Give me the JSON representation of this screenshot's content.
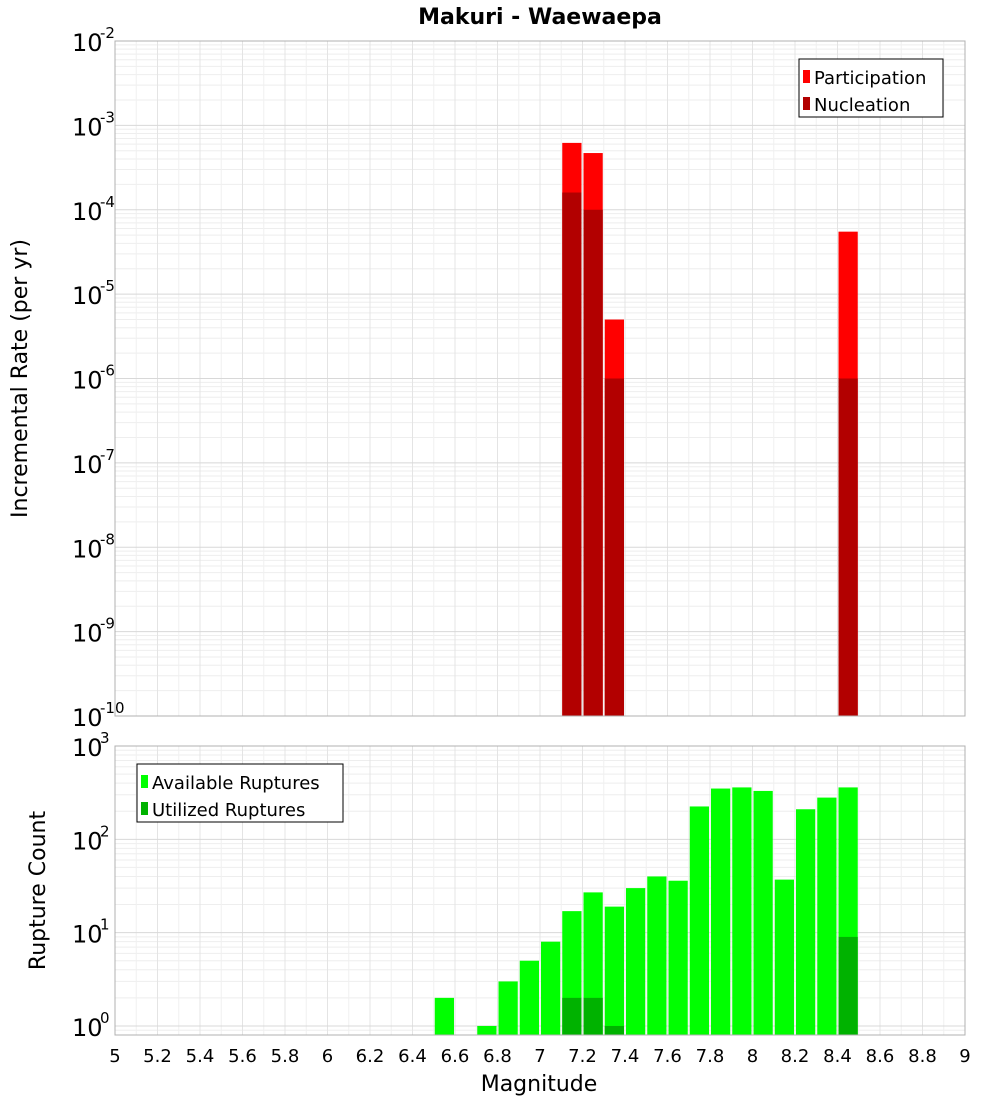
{
  "chart_data": [
    {
      "type": "bar",
      "title": "Makuri - Waewaepa",
      "ylabel": "Incremental Rate (per yr)",
      "xlabel": "",
      "yscale": "log",
      "ylim": [
        1e-10,
        0.01
      ],
      "xlim": [
        5,
        9
      ],
      "bar_width": 0.1,
      "y_ticks": [
        {
          "base": "10",
          "exp": "-10",
          "value": 1e-10
        },
        {
          "base": "10",
          "exp": "-9",
          "value": 1e-09
        },
        {
          "base": "10",
          "exp": "-8",
          "value": 1e-08
        },
        {
          "base": "10",
          "exp": "-7",
          "value": 1e-07
        },
        {
          "base": "10",
          "exp": "-6",
          "value": 1e-06
        },
        {
          "base": "10",
          "exp": "-5",
          "value": 1e-05
        },
        {
          "base": "10",
          "exp": "-4",
          "value": 0.0001
        },
        {
          "base": "10",
          "exp": "-3",
          "value": 0.001
        },
        {
          "base": "10",
          "exp": "-2",
          "value": 0.01
        }
      ],
      "legend": {
        "placement": "top-right"
      },
      "series": [
        {
          "name": "Participation",
          "color": "#ff0000",
          "points": [
            {
              "x": 7.15,
              "y": 0.00062
            },
            {
              "x": 7.25,
              "y": 0.00047
            },
            {
              "x": 7.35,
              "y": 5e-06
            },
            {
              "x": 8.45,
              "y": 5.5e-05
            }
          ]
        },
        {
          "name": "Nucleation",
          "color": "#b20000",
          "points": [
            {
              "x": 7.15,
              "y": 0.00016
            },
            {
              "x": 7.25,
              "y": 0.0001
            },
            {
              "x": 7.35,
              "y": 1e-06
            },
            {
              "x": 8.45,
              "y": 1e-06
            }
          ]
        }
      ]
    },
    {
      "type": "bar",
      "title": "",
      "ylabel": "Rupture Count",
      "xlabel": "Magnitude",
      "yscale": "log",
      "ylim": [
        0.8,
        1000
      ],
      "xlim": [
        5,
        9
      ],
      "bar_width": 0.1,
      "x_ticks": [
        "5",
        "5.2",
        "5.4",
        "5.6",
        "5.8",
        "6",
        "6.2",
        "6.4",
        "6.6",
        "6.8",
        "7",
        "7.2",
        "7.4",
        "7.6",
        "7.8",
        "8",
        "8.2",
        "8.4",
        "8.6",
        "8.8",
        "9"
      ],
      "y_ticks": [
        {
          "base": "10",
          "exp": "0",
          "value": 1
        },
        {
          "base": "10",
          "exp": "1",
          "value": 10
        },
        {
          "base": "10",
          "exp": "2",
          "value": 100
        },
        {
          "base": "10",
          "exp": "3",
          "value": 1000
        }
      ],
      "legend": {
        "placement": "top-left"
      },
      "series": [
        {
          "name": "Available Ruptures",
          "color": "#00ff00",
          "points": [
            {
              "x": 6.55,
              "y": 2
            },
            {
              "x": 6.75,
              "y": 1
            },
            {
              "x": 6.85,
              "y": 3
            },
            {
              "x": 6.95,
              "y": 5
            },
            {
              "x": 7.05,
              "y": 8
            },
            {
              "x": 7.15,
              "y": 17
            },
            {
              "x": 7.25,
              "y": 27
            },
            {
              "x": 7.35,
              "y": 19
            },
            {
              "x": 7.45,
              "y": 30
            },
            {
              "x": 7.55,
              "y": 40
            },
            {
              "x": 7.65,
              "y": 36
            },
            {
              "x": 7.75,
              "y": 225
            },
            {
              "x": 7.85,
              "y": 350
            },
            {
              "x": 7.95,
              "y": 360
            },
            {
              "x": 8.05,
              "y": 330
            },
            {
              "x": 8.15,
              "y": 37
            },
            {
              "x": 8.25,
              "y": 210
            },
            {
              "x": 8.35,
              "y": 280
            },
            {
              "x": 8.45,
              "y": 360
            }
          ]
        },
        {
          "name": "Utilized Ruptures",
          "color": "#00b200",
          "points": [
            {
              "x": 7.15,
              "y": 2
            },
            {
              "x": 7.25,
              "y": 2
            },
            {
              "x": 7.35,
              "y": 1
            },
            {
              "x": 8.45,
              "y": 9
            }
          ]
        }
      ]
    }
  ]
}
